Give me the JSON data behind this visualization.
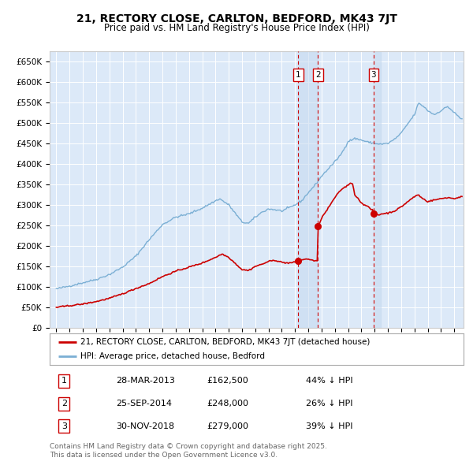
{
  "title": "21, RECTORY CLOSE, CARLTON, BEDFORD, MK43 7JT",
  "subtitle": "Price paid vs. HM Land Registry's House Price Index (HPI)",
  "legend_label_red": "21, RECTORY CLOSE, CARLTON, BEDFORD, MK43 7JT (detached house)",
  "legend_label_blue": "HPI: Average price, detached house, Bedford",
  "footnote": "Contains HM Land Registry data © Crown copyright and database right 2025.\nThis data is licensed under the Open Government Licence v3.0.",
  "transactions": [
    {
      "num": "1",
      "date": "28-MAR-2013",
      "price": "£162,500",
      "hpi_pct": "44% ↓ HPI"
    },
    {
      "num": "2",
      "date": "25-SEP-2014",
      "price": "£248,000",
      "hpi_pct": "26% ↓ HPI"
    },
    {
      "num": "3",
      "date": "30-NOV-2018",
      "price": "£279,000",
      "hpi_pct": "39% ↓ HPI"
    }
  ],
  "transaction_dates_decimal": [
    2013.24,
    2014.73,
    2018.92
  ],
  "transaction_prices": [
    162500,
    248000,
    279000
  ],
  "ylim": [
    0,
    675000
  ],
  "yticks": [
    0,
    50000,
    100000,
    150000,
    200000,
    250000,
    300000,
    350000,
    400000,
    450000,
    500000,
    550000,
    600000,
    650000
  ],
  "xlim_start": 1994.5,
  "xlim_end": 2025.7,
  "fig_bg_color": "#ffffff",
  "plot_bg_color": "#dce9f8",
  "red_color": "#cc0000",
  "blue_color": "#7bafd4",
  "vspan_color": "#c5d9ef",
  "dashed_line_color": "#cc0000",
  "grid_color": "#ffffff",
  "legend_border_color": "#aaaaaa",
  "title_fontsize": 10,
  "subtitle_fontsize": 8.5,
  "tick_fontsize": 7.5,
  "legend_fontsize": 8,
  "table_fontsize": 8,
  "footnote_fontsize": 6.5
}
